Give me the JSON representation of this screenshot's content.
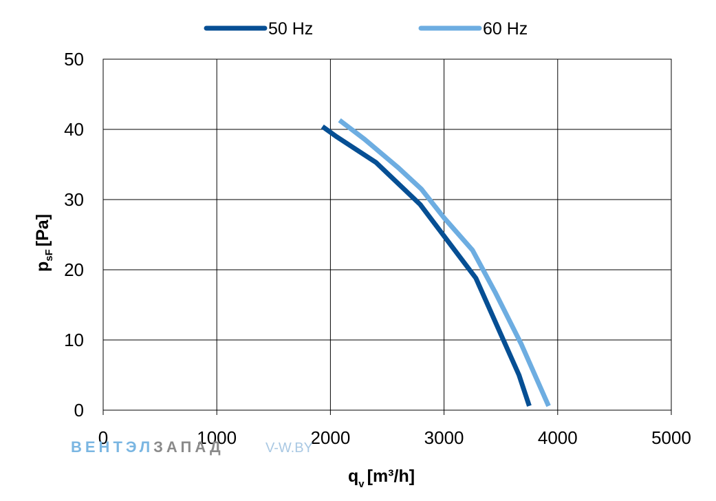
{
  "chart_data": {
    "type": "line",
    "xlabel_main": "q",
    "xlabel_sub": "v",
    "xlabel_unit": "[m³/h]",
    "ylabel_main": "p",
    "ylabel_sub": "sF",
    "ylabel_unit": "[Pa]",
    "xlim": [
      0,
      5000
    ],
    "ylim": [
      0,
      50
    ],
    "xticks": [
      "0",
      "1000",
      "2000",
      "3000",
      "4000",
      "5000"
    ],
    "yticks": [
      "0",
      "10",
      "20",
      "30",
      "40",
      "50"
    ],
    "grid": true,
    "legend_position": "top-center",
    "series": [
      {
        "name": "50 Hz",
        "color": "#064f94",
        "points": [
          [
            1930,
            40.4
          ],
          [
            2050,
            39.0
          ],
          [
            2400,
            35.3
          ],
          [
            2790,
            29.3
          ],
          [
            3000,
            24.8
          ],
          [
            3280,
            18.8
          ],
          [
            3500,
            10.8
          ],
          [
            3660,
            5.0
          ],
          [
            3750,
            0.6
          ]
        ]
      },
      {
        "name": "60 Hz",
        "color": "#6dade1",
        "points": [
          [
            2080,
            41.3
          ],
          [
            2300,
            38.6
          ],
          [
            2600,
            34.5
          ],
          [
            2800,
            31.5
          ],
          [
            3000,
            27.4
          ],
          [
            3250,
            22.8
          ],
          [
            3450,
            16.8
          ],
          [
            3680,
            9.4
          ],
          [
            3920,
            0.6
          ]
        ]
      }
    ]
  },
  "watermark": {
    "brand_part1": "ВЕНТЭЛ",
    "brand_part2": "ЗАПАД",
    "site": "V-W.BY",
    "color1": "#7ab6e2",
    "color2": "#8a8a8a",
    "color3": "#a9c8e3"
  }
}
